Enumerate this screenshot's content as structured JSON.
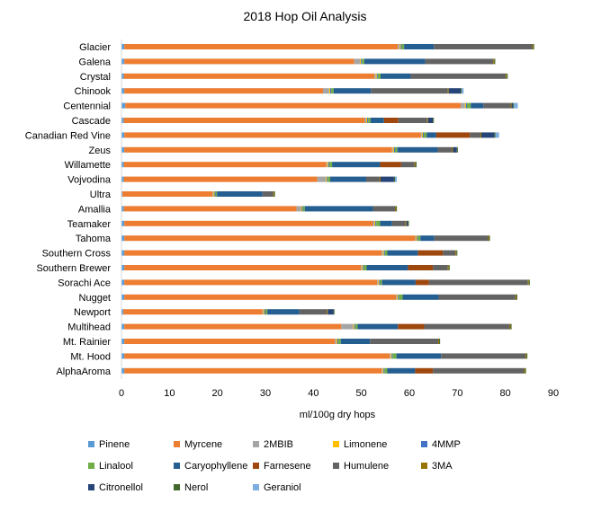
{
  "chart_data": {
    "type": "bar",
    "orientation": "horizontal",
    "stacked": true,
    "title": "2018 Hop Oil Analysis",
    "xlabel": "ml/100g dry hops",
    "ylabel": "",
    "xlim": [
      0,
      90
    ],
    "xticks": [
      0,
      10,
      20,
      30,
      40,
      50,
      60,
      70,
      80,
      90
    ],
    "grid": false,
    "legend_position": "bottom",
    "categories": [
      "Glacier",
      "Galena",
      "Crystal",
      "Chinook",
      "Centennial",
      "Cascade",
      "Canadian Red Vine",
      "Zeus",
      "Willamette",
      "Vojvodina",
      "Ultra",
      "Amallia",
      "Teamaker",
      "Tahoma",
      "Southern Cross",
      "Southern Brewer",
      "Sorachi Ace",
      "Nugget",
      "Newport",
      "Multihead",
      "Mt. Rainier",
      "Mt. Hood",
      "AlphaAroma"
    ],
    "series": [
      {
        "name": "Pinene",
        "color": "#5B9BD5",
        "values": [
          0.6,
          0.6,
          0.5,
          0.6,
          0.8,
          0.5,
          0.6,
          0.6,
          0.5,
          0.5,
          0.2,
          0.5,
          0.6,
          0.6,
          0.6,
          0.6,
          0.6,
          0.6,
          0.4,
          0.6,
          0.6,
          0.6,
          0.6
        ]
      },
      {
        "name": "Myrcene",
        "color": "#ED7D31",
        "values": [
          57.0,
          47.9,
          52.2,
          41.4,
          69.9,
          50.2,
          61.8,
          55.8,
          42.2,
          40.3,
          18.8,
          36.0,
          51.8,
          60.6,
          53.6,
          49.3,
          52.7,
          56.6,
          29.0,
          45.2,
          43.9,
          55.3,
          53.6
        ]
      },
      {
        "name": "2MBIB",
        "color": "#A5A5A5",
        "values": [
          0.4,
          1.2,
          0.3,
          1.3,
          0.9,
          0.3,
          0.2,
          0.2,
          0.2,
          1.8,
          0.2,
          0.9,
          0.3,
          0.2,
          0.3,
          0.2,
          0.2,
          0.2,
          0.2,
          2.5,
          0.3,
          0.2,
          0.2
        ]
      },
      {
        "name": "Limonene",
        "color": "#FFC000",
        "values": [
          0.2,
          0.2,
          0.2,
          0.2,
          0.2,
          0.2,
          0.2,
          0.2,
          0.2,
          0.2,
          0.2,
          0.2,
          0.2,
          0.2,
          0.2,
          0.2,
          0.2,
          0.2,
          0.2,
          0.2,
          0.2,
          0.2,
          0.2
        ]
      },
      {
        "name": "4MMP",
        "color": "#4472C4",
        "values": [
          0.2,
          0.2,
          0.2,
          0.2,
          0.2,
          0.2,
          0.2,
          0.2,
          0.2,
          0.2,
          0.2,
          0.2,
          0.2,
          0.2,
          0.2,
          0.2,
          0.2,
          0.2,
          0.2,
          0.2,
          0.2,
          0.2,
          0.2
        ]
      },
      {
        "name": "Linalool",
        "color": "#70AD47",
        "values": [
          0.5,
          0.5,
          0.6,
          0.5,
          0.8,
          0.5,
          0.6,
          0.5,
          0.6,
          0.5,
          0.3,
          0.4,
          0.8,
          0.5,
          0.5,
          0.6,
          0.4,
          0.8,
          0.4,
          0.5,
          0.5,
          0.8,
          0.6
        ]
      },
      {
        "name": "Caryophyllene",
        "color": "#255E91",
        "values": [
          6.2,
          12.7,
          6.3,
          7.8,
          2.6,
          2.8,
          2.0,
          8.4,
          10.0,
          7.5,
          9.5,
          14.2,
          2.5,
          2.9,
          6.4,
          8.6,
          7.0,
          7.5,
          6.7,
          8.4,
          6.1,
          9.3,
          5.8
        ]
      },
      {
        "name": "Farnesene",
        "color": "#9E480E",
        "values": [
          0,
          0,
          0,
          0,
          0,
          3.0,
          7.0,
          0,
          4.4,
          0,
          0,
          0,
          0,
          0,
          5.2,
          5.2,
          2.8,
          0,
          0,
          5.5,
          0,
          0,
          3.7
        ]
      },
      {
        "name": "Humulene",
        "color": "#636363",
        "values": [
          20.5,
          14.2,
          19.8,
          16.0,
          5.7,
          6.0,
          2.2,
          3.0,
          2.8,
          2.8,
          2.2,
          4.6,
          2.8,
          11.2,
          2.6,
          3.1,
          20.6,
          16.0,
          5.7,
          17.8,
          14.2,
          17.6,
          19.0
        ]
      },
      {
        "name": "3MA",
        "color": "#997300",
        "values": [
          0.2,
          0.2,
          0.2,
          0.2,
          0.2,
          0.2,
          0.2,
          0.2,
          0.2,
          0.2,
          0.2,
          0.2,
          0.2,
          0.2,
          0.2,
          0.2,
          0.2,
          0.2,
          0.2,
          0.2,
          0.2,
          0.2,
          0.2
        ]
      },
      {
        "name": "Citronellol",
        "color": "#264478",
        "values": [
          0,
          0,
          0,
          2.5,
          0.3,
          1.0,
          2.7,
          0.8,
          0,
          2.8,
          0,
          0,
          0.3,
          0,
          0,
          0,
          0,
          0,
          1.2,
          0,
          0,
          0,
          0
        ]
      },
      {
        "name": "Nerol",
        "color": "#43682B",
        "values": [
          0.2,
          0.2,
          0.2,
          0.2,
          0.2,
          0.2,
          0.2,
          0.2,
          0.2,
          0.2,
          0.2,
          0.2,
          0.2,
          0.2,
          0.2,
          0.2,
          0.2,
          0.2,
          0.2,
          0.2,
          0.2,
          0.2,
          0.2
        ]
      },
      {
        "name": "Geraniol",
        "color": "#7CAFDD",
        "values": [
          0,
          0,
          0,
          0.4,
          0.8,
          0,
          0.8,
          0,
          0,
          0.4,
          0,
          0,
          0,
          0,
          0,
          0,
          0,
          0,
          0,
          0,
          0,
          0,
          0
        ]
      }
    ]
  }
}
